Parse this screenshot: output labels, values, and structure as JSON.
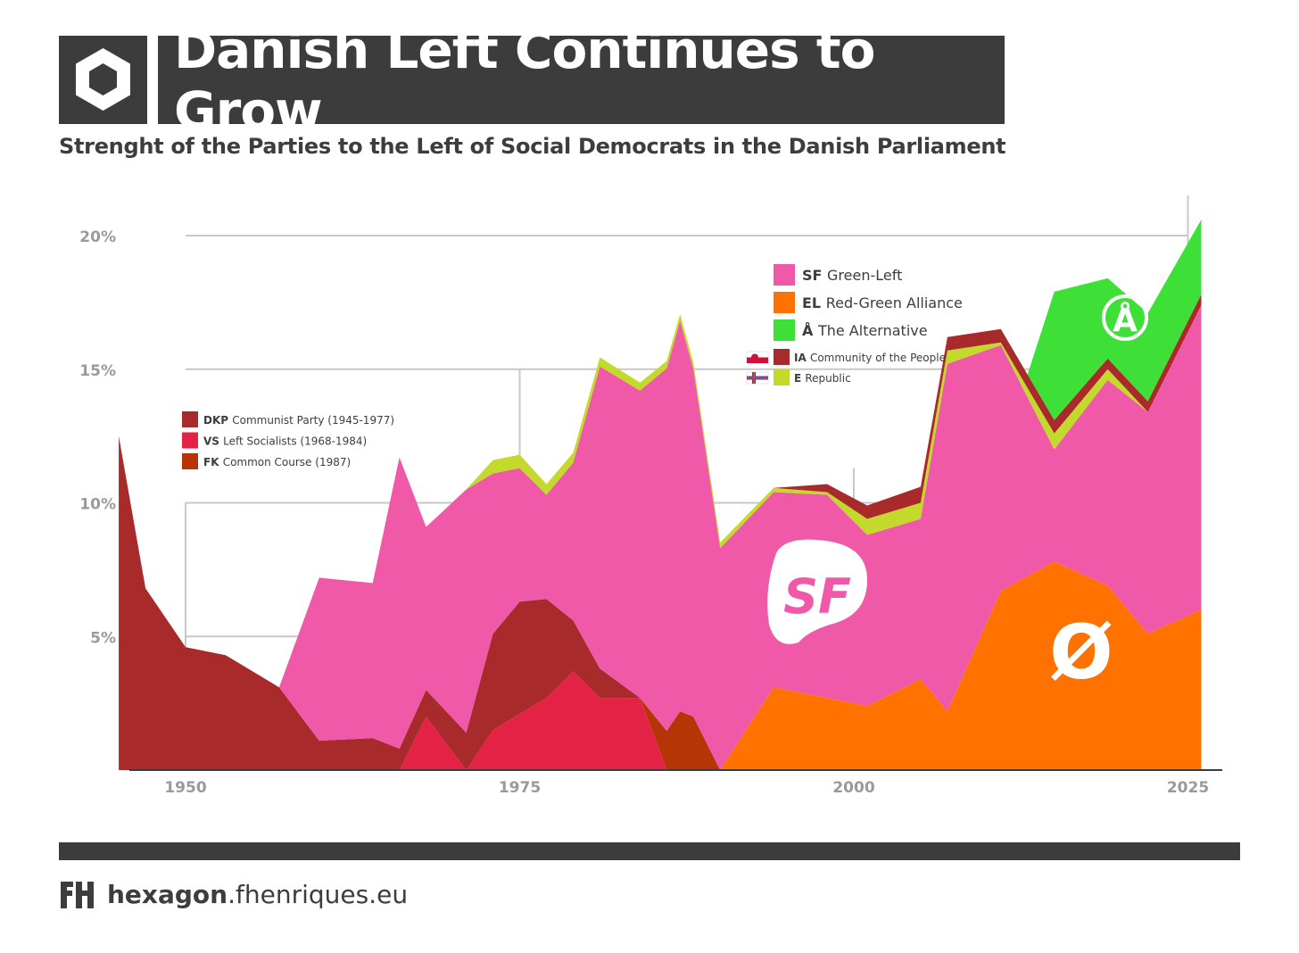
{
  "header": {
    "title": "Danish Left Continues to Grow",
    "subtitle": "Strenght of the Parties to the Left of Social Democrats in the Danish Parliament"
  },
  "footer": {
    "brand_bold": "hexagon",
    "brand_rest": ".fhenriques.eu"
  },
  "chart_data": {
    "type": "area",
    "stacked": true,
    "title": "Danish Left Continues to Grow",
    "subtitle": "Strenght of the Parties to the Left of Social Democrats in the Danish Parliament",
    "xlabel": "",
    "ylabel": "",
    "xlim": [
      1945,
      2027.6
    ],
    "ylim": [
      0,
      21
    ],
    "x_ticks": [
      1950,
      1975,
      2000,
      2025
    ],
    "x_tick_labels": [
      "1950",
      "1975",
      "2000",
      "2025"
    ],
    "y_ticks": [
      5,
      10,
      15,
      20
    ],
    "y_tick_labels": [
      "5%",
      "10%",
      "15%",
      "20%"
    ],
    "series": [
      {
        "name": "EL Red-Green Alliance",
        "color": "#ff7200",
        "points": [
          [
            1990.0,
            0
          ],
          [
            1994.0,
            3.1
          ],
          [
            1998.0,
            2.7
          ],
          [
            2001.0,
            2.4
          ],
          [
            2005.0,
            3.4
          ],
          [
            2007.0,
            2.2
          ],
          [
            2011.0,
            6.7
          ],
          [
            2015.0,
            7.8
          ],
          [
            2019.0,
            6.9
          ],
          [
            2022.0,
            5.1
          ],
          [
            2026.0,
            6.0
          ]
        ]
      },
      {
        "name": "VS Left Socialists (1968-1984)",
        "color": "#e32245",
        "points": [
          [
            1966.0,
            0
          ],
          [
            1968.0,
            2.0
          ],
          [
            1971.0,
            0
          ],
          [
            1973.0,
            1.5
          ],
          [
            1975.0,
            2.1
          ],
          [
            1977.0,
            2.7
          ],
          [
            1979.0,
            3.7
          ],
          [
            1981.0,
            2.7
          ],
          [
            1984.0,
            2.7
          ],
          [
            1986.0,
            0
          ]
        ]
      },
      {
        "name": "DKP Communist Party (1945-1977)",
        "color": "#a82a2a",
        "points": [
          [
            1945.0,
            12.5
          ],
          [
            1947.0,
            6.8
          ],
          [
            1950.0,
            4.6
          ],
          [
            1953.0,
            4.3
          ],
          [
            1957.0,
            3.1
          ],
          [
            1960.0,
            1.1
          ],
          [
            1964.0,
            1.2
          ],
          [
            1966.0,
            0.8
          ],
          [
            1968.0,
            1.0
          ],
          [
            1971.0,
            1.4
          ],
          [
            1973.0,
            3.6
          ],
          [
            1975.0,
            4.2
          ],
          [
            1977.0,
            3.7
          ],
          [
            1979.0,
            1.9
          ],
          [
            1981.0,
            1.1
          ]
        ]
      },
      {
        "name": "FK Common Course (1987)",
        "color": "#b53507",
        "points": [
          [
            1984.0,
            0
          ],
          [
            1987.0,
            2.2
          ],
          [
            1988.0,
            2.0
          ]
        ]
      },
      {
        "name": "SF Green-Left",
        "color": "#f059a8",
        "points": [
          [
            1957.0,
            0
          ],
          [
            1960.0,
            6.1
          ],
          [
            1964.0,
            5.8
          ],
          [
            1966.0,
            10.9
          ],
          [
            1968.0,
            6.1
          ],
          [
            1971.0,
            9.1
          ],
          [
            1973.0,
            6.0
          ],
          [
            1975.0,
            5.0
          ],
          [
            1977.0,
            3.9
          ],
          [
            1979.0,
            5.9
          ],
          [
            1981.0,
            11.3
          ],
          [
            1984.0,
            11.5
          ],
          [
            1987.0,
            14.6
          ],
          [
            1988.0,
            13.0
          ],
          [
            1990.0,
            8.3
          ],
          [
            1994.0,
            7.3
          ],
          [
            1998.0,
            7.6
          ],
          [
            2001.0,
            6.4
          ],
          [
            2005.0,
            6.0
          ],
          [
            2007.0,
            13.0
          ],
          [
            2011.0,
            9.2
          ],
          [
            2015.0,
            4.2
          ],
          [
            2019.0,
            7.7
          ],
          [
            2022.0,
            8.3
          ],
          [
            2026.0,
            11.4
          ]
        ]
      },
      {
        "name": "E Republic",
        "color": "#c3d92b",
        "points": [
          [
            1971.0,
            0
          ],
          [
            1973.0,
            0.5
          ],
          [
            1975.0,
            0.5
          ],
          [
            1977.0,
            0.4
          ],
          [
            1998.0,
            0.1
          ],
          [
            2001.0,
            0.6
          ],
          [
            2005.0,
            0.6
          ],
          [
            2007.0,
            0.5
          ],
          [
            2011.0,
            0.1
          ],
          [
            2015.0,
            0.6
          ],
          [
            2019.0,
            0.4
          ]
        ]
      },
      {
        "name": "IA Community of the People",
        "color": "#a82a2a",
        "points": [
          [
            1998.0,
            0.3
          ],
          [
            2001.0,
            0.5
          ],
          [
            2005.0,
            0.6
          ],
          [
            2007.0,
            0.5
          ],
          [
            2011.0,
            0.5
          ],
          [
            2015.0,
            0.5
          ],
          [
            2019.0,
            0.4
          ],
          [
            2022.0,
            0.4
          ],
          [
            2026.0,
            0.4
          ]
        ]
      },
      {
        "name": "Å The Alternative",
        "color": "#3ee038",
        "points": [
          [
            2013.0,
            0
          ],
          [
            2015.0,
            4.8
          ],
          [
            2019.0,
            3.0
          ],
          [
            2022.0,
            3.3
          ],
          [
            2026.0,
            2.8
          ]
        ]
      }
    ],
    "legend_top_right": [
      {
        "abbr": "SF",
        "label": "Green-Left",
        "color": "#f059a8",
        "large": true
      },
      {
        "abbr": "EL",
        "label": "Red-Green Alliance",
        "color": "#ff7200",
        "large": true
      },
      {
        "abbr": "Å",
        "label": "The Alternative",
        "color": "#3ee038",
        "large": true
      },
      {
        "abbr": "IA",
        "label": "Community of the People",
        "color": "#a82a2a",
        "large": false,
        "flag": "greenland"
      },
      {
        "abbr": "E",
        "label": "Republic",
        "color": "#c3d92b",
        "large": false,
        "flag": "faroe"
      }
    ],
    "legend_left": [
      {
        "abbr": "DKP",
        "label": "Communist Party (1945-1977)",
        "color": "#a82a2a"
      },
      {
        "abbr": "VS",
        "label": "Left Socialists (1968-1984)",
        "color": "#e32245"
      },
      {
        "abbr": "FK",
        "label": "Common Course (1987)",
        "color": "#b53507"
      }
    ],
    "annotations": [
      {
        "text": "SF",
        "near": "SF area",
        "kind": "party-logo"
      },
      {
        "text": "Ø",
        "near": "EL area",
        "kind": "party-logo"
      },
      {
        "text": "Å",
        "near": "Alternative area",
        "kind": "party-logo"
      }
    ]
  }
}
